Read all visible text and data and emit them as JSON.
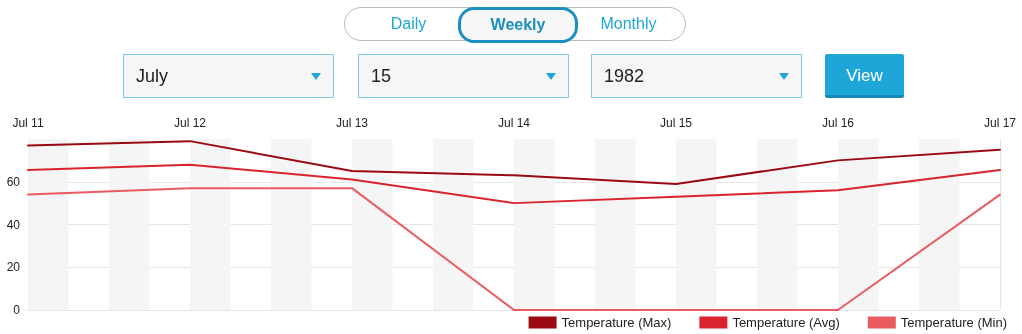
{
  "chart_data": {
    "type": "line",
    "x": [
      "1982-07-11",
      "1982-07-12",
      "1982-07-13",
      "1982-07-14",
      "1982-07-15",
      "1982-07-16",
      "1982-07-17"
    ],
    "series": [
      {
        "name": "Temperature (Max)",
        "color": "#9b0a12",
        "values": [
          77,
          79,
          65,
          63,
          59,
          70,
          75
        ]
      },
      {
        "name": "Temperature (Avg)",
        "color": "#d9232e",
        "values": [
          65.5,
          68,
          61,
          50,
          53,
          56,
          65.5
        ]
      },
      {
        "name": "Temperature (Min)",
        "color": "#e85c5f",
        "values": [
          54,
          57,
          57,
          0,
          0,
          0,
          54
        ]
      }
    ],
    "xlim": [
      "1982-07-11",
      "1982-07-17"
    ],
    "xticks": [
      {
        "value": "1982-07-11",
        "label": "Jul 11"
      },
      {
        "value": "1982-07-12",
        "label": "Jul 12"
      },
      {
        "value": "1982-07-13",
        "label": "Jul 13"
      },
      {
        "value": "1982-07-14",
        "label": "Jul 14"
      },
      {
        "value": "1982-07-15",
        "label": "Jul 15"
      },
      {
        "value": "1982-07-16",
        "label": "Jul 16"
      },
      {
        "value": "1982-07-17",
        "label": "Jul 17"
      }
    ],
    "ylim": [
      0,
      80
    ],
    "yticks": [
      0,
      20,
      40,
      60
    ],
    "grid": true,
    "legend": "bottom right",
    "marker": "none",
    "line_style": "solid",
    "bands": [
      {
        "axis": "x",
        "from": "1982-07-11T00:00",
        "to": "1982-07-11T06:00",
        "color": "#f5f5f5"
      },
      {
        "axis": "x",
        "from": "1982-07-11T12:00",
        "to": "1982-07-11T18:00",
        "color": "#f5f5f5"
      },
      {
        "axis": "x",
        "from": "1982-07-12T00:00",
        "to": "1982-07-12T06:00",
        "color": "#f5f5f5"
      },
      {
        "axis": "x",
        "from": "1982-07-12T12:00",
        "to": "1982-07-12T18:00",
        "color": "#f5f5f5"
      },
      {
        "axis": "x",
        "from": "1982-07-13T00:00",
        "to": "1982-07-13T06:00",
        "color": "#f5f5f5"
      },
      {
        "axis": "x",
        "from": "1982-07-13T12:00",
        "to": "1982-07-13T18:00",
        "color": "#f5f5f5"
      },
      {
        "axis": "x",
        "from": "1982-07-14T00:00",
        "to": "1982-07-14T06:00",
        "color": "#f5f5f5"
      },
      {
        "axis": "x",
        "from": "1982-07-14T12:00",
        "to": "1982-07-14T18:00",
        "color": "#f5f5f5"
      },
      {
        "axis": "x",
        "from": "1982-07-15T00:00",
        "to": "1982-07-15T06:00",
        "color": "#f5f5f5"
      },
      {
        "axis": "x",
        "from": "1982-07-15T12:00",
        "to": "1982-07-15T18:00",
        "color": "#f5f5f5"
      },
      {
        "axis": "x",
        "from": "1982-07-16T00:00",
        "to": "1982-07-16T06:00",
        "color": "#f5f5f5"
      },
      {
        "axis": "x",
        "from": "1982-07-16T12:00",
        "to": "1982-07-16T18:00",
        "color": "#f5f5f5"
      }
    ],
    "annotations": [
      "Daily",
      "Weekly",
      "Monthly",
      "July",
      "15",
      "1982",
      "View"
    ]
  }
}
